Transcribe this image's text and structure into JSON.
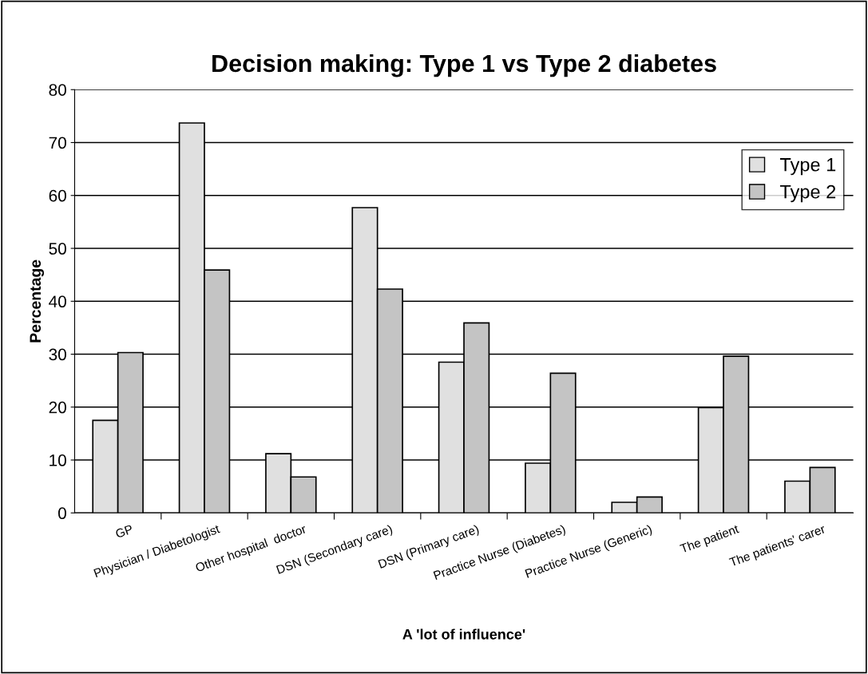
{
  "chart_data": {
    "type": "bar",
    "title": "Decision making: Type 1 vs Type 2 diabetes",
    "xlabel": "A 'lot of influence'",
    "ylabel": "Percentage",
    "categories": [
      "GP",
      "Physician / Diabetologist",
      "Other hospital  doctor",
      "DSN (Secondary care)",
      "DSN (Primary care)",
      "Practice Nurse (Diabetes)",
      "Practice Nurse (Generic)",
      "The patient",
      "The patients' carer"
    ],
    "series": [
      {
        "name": "Type 1",
        "color": "#e0e0e0",
        "values": [
          17.5,
          73.7,
          11.2,
          57.7,
          28.5,
          9.4,
          2.0,
          19.9,
          6.0
        ]
      },
      {
        "name": "Type 2",
        "color": "#c4c4c4",
        "values": [
          30.3,
          45.9,
          6.8,
          42.3,
          35.9,
          26.4,
          3.0,
          29.6,
          8.6
        ]
      }
    ],
    "ylim": [
      0,
      80
    ],
    "yticks": [
      0,
      10,
      20,
      30,
      40,
      50,
      60,
      70,
      80
    ],
    "grid": "y",
    "legend": "top right"
  }
}
